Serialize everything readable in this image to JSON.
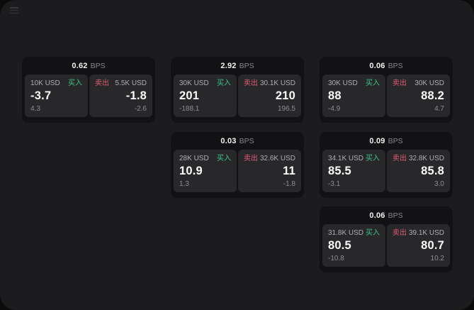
{
  "window": {
    "background": "#1c1c1e",
    "card_background": "#121214",
    "panel_background": "#28282b"
  },
  "labels": {
    "bps_unit": "BPS",
    "buy": "买入",
    "sell": "卖出"
  },
  "colors": {
    "buy": "#3fc487",
    "sell": "#df5a74",
    "value_text": "#fbfbfc",
    "muted_text": "#8d8d92"
  },
  "cards": [
    {
      "bps": "0.62",
      "buy": {
        "amount": "10K USD",
        "value": "-3.7",
        "delta": "4.3"
      },
      "sell": {
        "amount": "5.5K USD",
        "value": "-1.8",
        "delta": "-2.6"
      }
    },
    {
      "bps": "2.92",
      "buy": {
        "amount": "30K USD",
        "value": "201",
        "delta": "-188.1"
      },
      "sell": {
        "amount": "30.1K USD",
        "value": "210",
        "delta": "196.5"
      }
    },
    {
      "bps": "0.06",
      "buy": {
        "amount": "30K USD",
        "value": "88",
        "delta": "-4.9"
      },
      "sell": {
        "amount": "30K USD",
        "value": "88.2",
        "delta": "4.7"
      }
    },
    {
      "bps": "0.03",
      "buy": {
        "amount": "28K USD",
        "value": "10.9",
        "delta": "1.3"
      },
      "sell": {
        "amount": "32.6K USD",
        "value": "11",
        "delta": "-1.8"
      }
    },
    {
      "bps": "0.09",
      "buy": {
        "amount": "34.1K USD",
        "value": "85.5",
        "delta": "-3.1"
      },
      "sell": {
        "amount": "32.8K USD",
        "value": "85.8",
        "delta": "3.0"
      }
    },
    {
      "bps": "0.06",
      "buy": {
        "amount": "31.8K USD",
        "value": "80.5",
        "delta": "-10.8"
      },
      "sell": {
        "amount": "39.1K USD",
        "value": "80.7",
        "delta": "10.2"
      }
    }
  ]
}
